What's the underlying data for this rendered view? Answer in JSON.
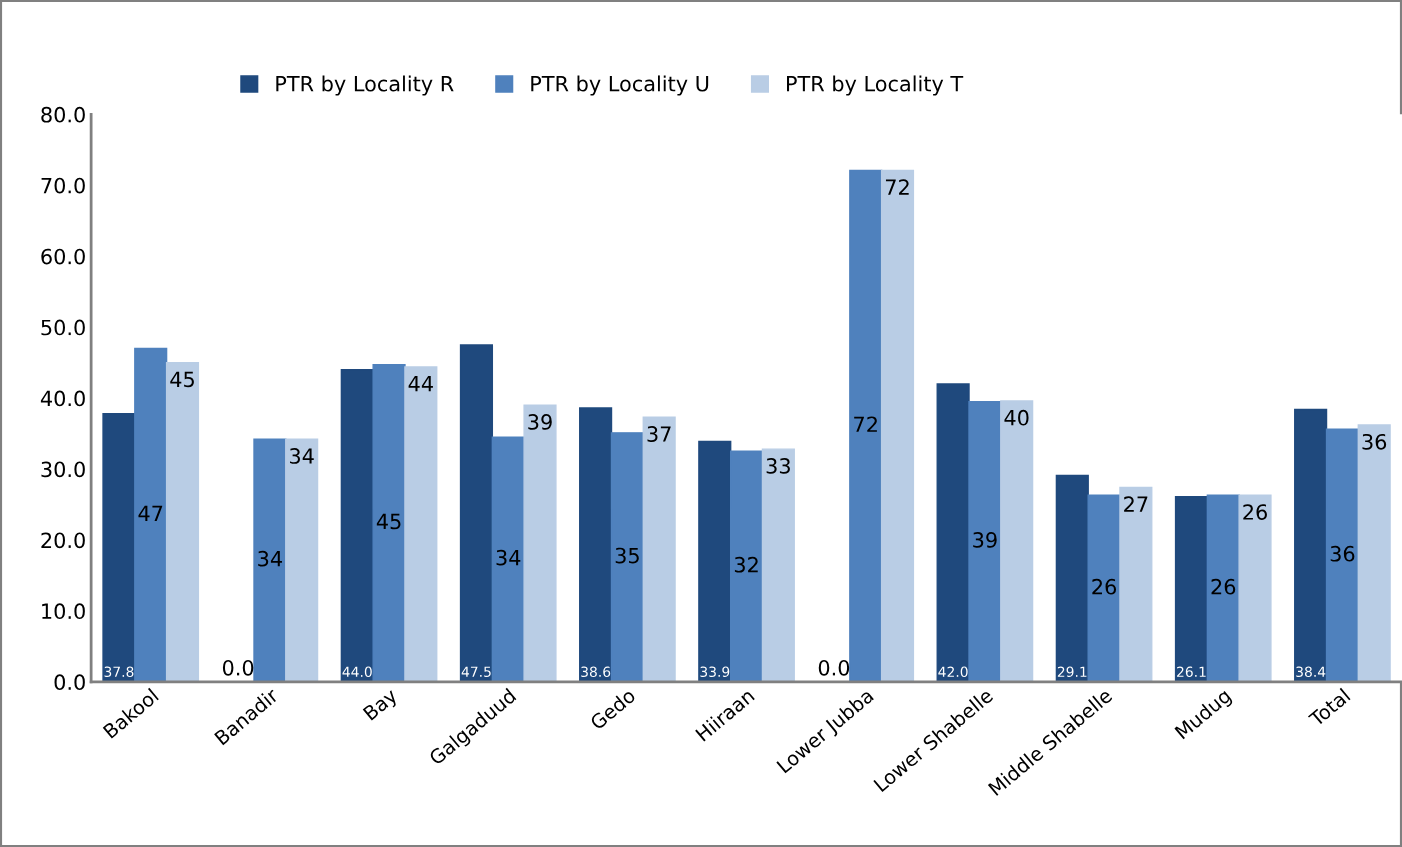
{
  "chart_data": {
    "type": "bar",
    "categories": [
      "Bakool",
      "Banadir",
      "Bay",
      "Galgaduud",
      "Gedo",
      "Hiiraan",
      "Lower Jubba",
      "Lower Shabelle",
      "Middle Shabelle",
      "Mudug",
      "Total"
    ],
    "series": [
      {
        "name": "PTR by Locality R",
        "color": "#1f497d",
        "values": [
          37.8,
          0.0,
          44.0,
          47.5,
          38.6,
          33.9,
          0.0,
          42.0,
          29.1,
          26.1,
          38.4
        ],
        "value_labels": [
          "37.8",
          "0.0",
          "44.0",
          "47.5",
          "38.6",
          "33.9",
          "0.0",
          "42.0",
          "29.1",
          "26.1",
          "38.4"
        ]
      },
      {
        "name": "PTR by Locality U",
        "color": "#4f81bd",
        "values": [
          47.0,
          34.2,
          44.7,
          34.5,
          35.1,
          32.5,
          72.1,
          39.5,
          26.3,
          26.3,
          35.6
        ],
        "value_labels": [
          "47",
          "34",
          "45",
          "34",
          "35",
          "32",
          "72",
          "39",
          "26",
          "26",
          "36"
        ]
      },
      {
        "name": "PTR by Locality T",
        "color": "#b9cde5",
        "values": [
          45.0,
          34.2,
          44.4,
          39.0,
          37.3,
          32.8,
          72.1,
          39.6,
          27.4,
          26.3,
          36.2
        ],
        "value_labels": [
          "45",
          "34",
          "44",
          "39",
          "37",
          "33",
          "72",
          "40",
          "27",
          "26",
          "36"
        ]
      }
    ],
    "ylim": [
      0,
      80
    ],
    "yticks": [
      {
        "value": 0,
        "label": "0.0"
      },
      {
        "value": 10,
        "label": "10.0"
      },
      {
        "value": 20,
        "label": "20.0"
      },
      {
        "value": 30,
        "label": "30.0"
      },
      {
        "value": 40,
        "label": "40.0"
      },
      {
        "value": 50,
        "label": "50.0"
      },
      {
        "value": 60,
        "label": "60.0"
      },
      {
        "value": 70,
        "label": "70.0"
      },
      {
        "value": 80,
        "label": "80.0"
      }
    ],
    "grid": false,
    "legend": "top left"
  }
}
